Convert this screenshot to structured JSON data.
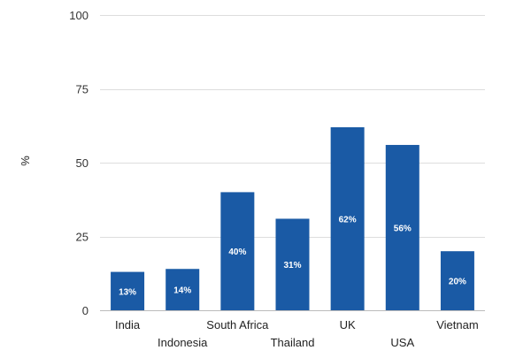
{
  "chart_data": {
    "type": "bar",
    "title": "",
    "xlabel": "",
    "ylabel": "%",
    "ylim": [
      0,
      100
    ],
    "yticks": [
      0,
      25,
      50,
      75,
      100
    ],
    "grid": true,
    "bar_color": "#1a5aa5",
    "categories": [
      "India",
      "Indonesia",
      "South Africa",
      "Thailand",
      "UK",
      "USA",
      "Vietnam"
    ],
    "values": [
      13,
      14,
      40,
      31,
      62,
      56,
      20
    ],
    "data_labels": [
      "13%",
      "14%",
      "40%",
      "31%",
      "62%",
      "56%",
      "20%"
    ]
  }
}
